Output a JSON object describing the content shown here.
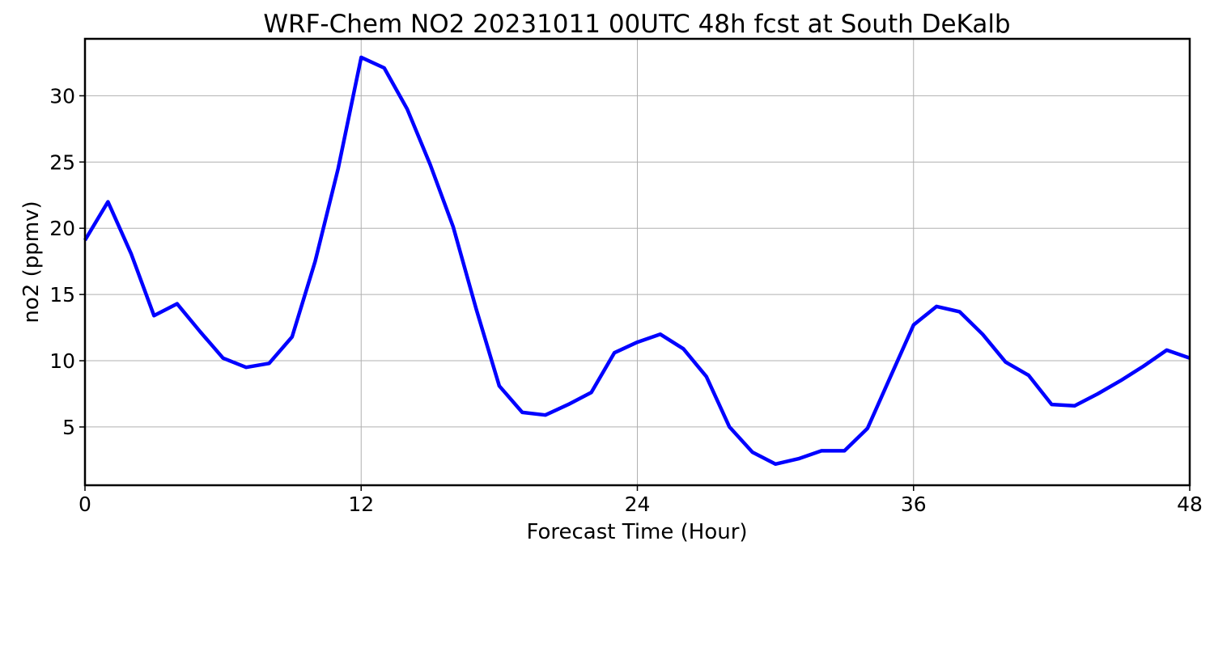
{
  "chart_data": {
    "type": "line",
    "title": "WRF-Chem NO2  20231011 00UTC 48h fcst at South DeKalb",
    "xlabel": "Forecast Time (Hour)",
    "ylabel": "no2  (ppmv)",
    "xlim": [
      0,
      48
    ],
    "ylim": [
      0.6,
      34.3
    ],
    "xticks": [
      0,
      12,
      24,
      36,
      48
    ],
    "xtick_labels": [
      "0",
      "12",
      "24",
      "36",
      "48"
    ],
    "yticks": [
      5,
      10,
      15,
      20,
      25,
      30
    ],
    "ytick_labels": [
      "5",
      "10",
      "15",
      "20",
      "25",
      "30"
    ],
    "grid": true,
    "line_color": "#0000ff",
    "series": [
      {
        "x": [
          0,
          1,
          2,
          3,
          4,
          5,
          6,
          7,
          8,
          9,
          10,
          11,
          12,
          13,
          14,
          15,
          16,
          17,
          18,
          19,
          20,
          21,
          22,
          23,
          24,
          25,
          26,
          27,
          28,
          29,
          30,
          31,
          32,
          33,
          34,
          35,
          36,
          37,
          38,
          39,
          40,
          41,
          42,
          43,
          44,
          45,
          46,
          47,
          48
        ],
        "values": [
          19.1,
          22.0,
          18.1,
          13.4,
          14.3,
          12.2,
          10.2,
          9.5,
          9.8,
          11.8,
          17.5,
          24.5,
          32.9,
          32.1,
          29.0,
          24.8,
          20.1,
          13.9,
          8.1,
          6.1,
          5.9,
          6.7,
          7.6,
          10.6,
          11.4,
          12.0,
          10.9,
          8.8,
          5.0,
          3.1,
          2.2,
          2.6,
          3.2,
          3.2,
          4.9,
          8.8,
          12.7,
          14.1,
          13.7,
          12.0,
          9.9,
          8.9,
          6.7,
          6.6,
          7.5,
          8.5,
          9.6,
          10.8,
          10.2
        ]
      }
    ]
  }
}
